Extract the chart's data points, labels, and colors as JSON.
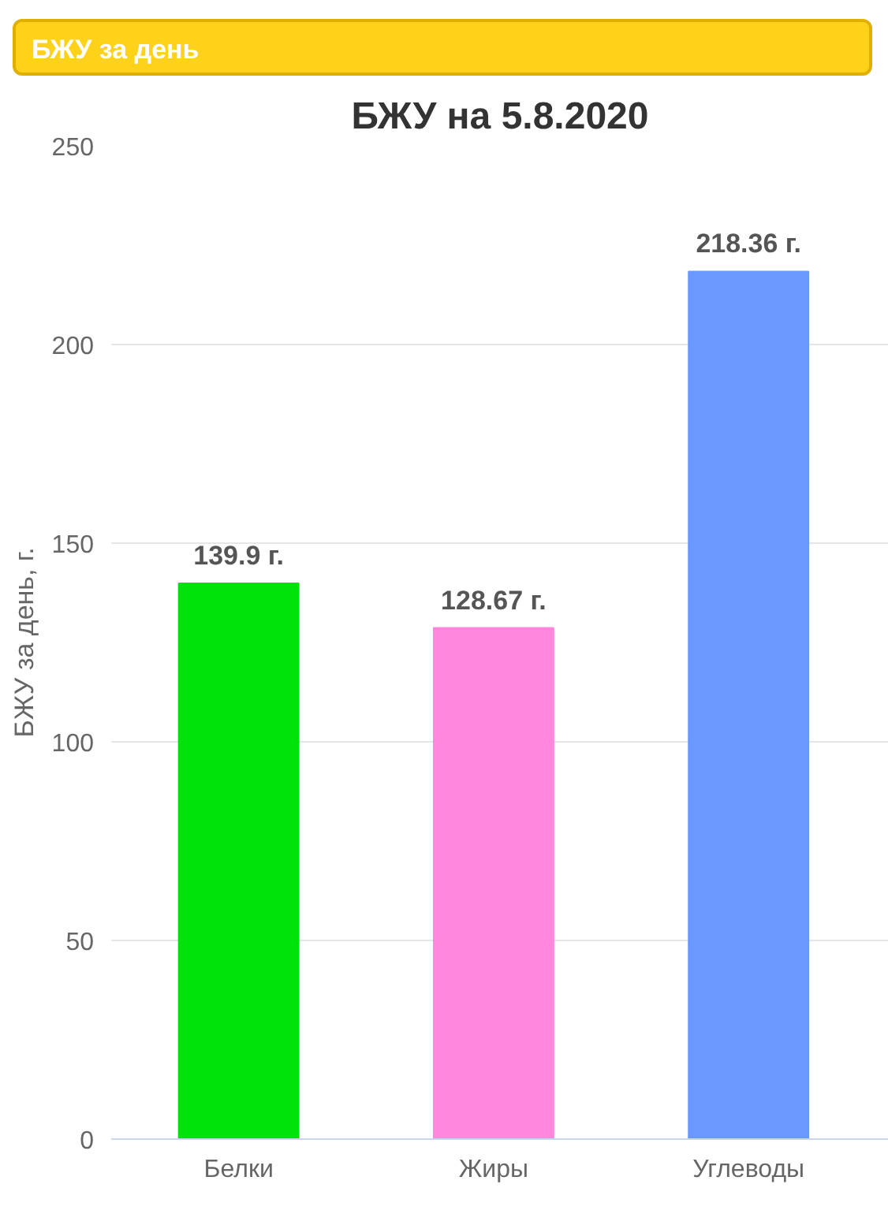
{
  "chart_data": {
    "type": "bar",
    "title": "БЖУ на 5.8.2020",
    "annotations": [
      "БЖУ за день"
    ],
    "ylabel": "БЖУ за день, г.",
    "categories": [
      "Белки",
      "Жиры",
      "Углеводы"
    ],
    "values": [
      139.9,
      128.67,
      218.36
    ],
    "colors": [
      "#00e30a",
      "#ff88dd",
      "#6b98ff"
    ],
    "value_labels": [
      "139.9 г.",
      "128.67 г.",
      "218.36 г."
    ],
    "ylim": [
      0,
      250
    ],
    "yticks": [
      0,
      50,
      100,
      150,
      200,
      250
    ],
    "grid": "y"
  }
}
